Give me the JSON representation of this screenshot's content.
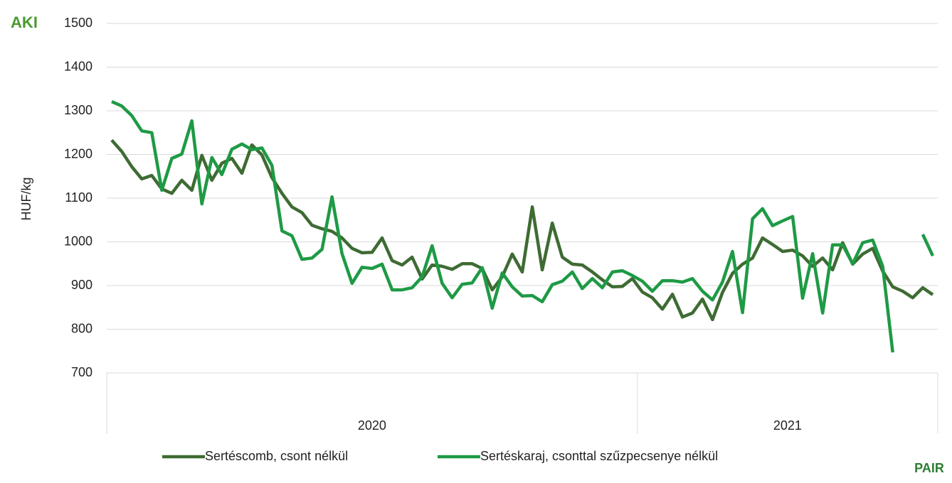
{
  "chart_data": {
    "type": "line",
    "ylabel": "HUF/kg",
    "logos": [
      "AKI",
      "PAIR"
    ],
    "categories": [
      null,
      null,
      null,
      null,
      null,
      null,
      null,
      null,
      null,
      null,
      null,
      null,
      null,
      null,
      null,
      null,
      null,
      null,
      null,
      null,
      null,
      null,
      null,
      null,
      null,
      null,
      null,
      null,
      null,
      null,
      null,
      null,
      null,
      null,
      null,
      null,
      null,
      null,
      null,
      null,
      null,
      null,
      null,
      null,
      null,
      null,
      null,
      null,
      null,
      null,
      null,
      null,
      null,
      null,
      null,
      null,
      null,
      null,
      null,
      null,
      null,
      null,
      null,
      null,
      null,
      null,
      null,
      null,
      null,
      null,
      null,
      null,
      null,
      null,
      null,
      null,
      null,
      null,
      null,
      null,
      null,
      null,
      null
    ],
    "category_groups": [
      {
        "label": "2020",
        "count": 53
      },
      {
        "label": "2021",
        "count": 30
      }
    ],
    "series": [
      {
        "name": "Sertéscomb, csont nélkül",
        "color": "#3e6b33",
        "values": [
          1233,
          1207,
          1172,
          1144,
          1152,
          1121,
          1111,
          1141,
          1118,
          1198,
          1141,
          1180,
          1191,
          1157,
          1222,
          1199,
          1147,
          1111,
          1080,
          1067,
          1038,
          1030,
          1024,
          1009,
          985,
          975,
          976,
          1009,
          957,
          947,
          965,
          915,
          947,
          944,
          937,
          950,
          950,
          939,
          890,
          920,
          972,
          931,
          1080,
          936,
          1043,
          965,
          949,
          947,
          931,
          913,
          897,
          898,
          916,
          885,
          872,
          846,
          880,
          828,
          837,
          869,
          822,
          884,
          928,
          949,
          963,
          1009,
          994,
          978,
          981,
          968,
          944,
          963,
          936,
          998,
          949,
          972,
          985,
          933,
          897,
          887,
          872,
          895,
          879
        ]
      },
      {
        "name": "Sertéskaraj, csonttal szűzpecsenye nélkül",
        "color": "#1e9a45",
        "values": [
          1321,
          1311,
          1289,
          1254,
          1250,
          1118,
          1191,
          1201,
          1277,
          1087,
          1193,
          1154,
          1212,
          1224,
          1211,
          1215,
          1175,
          1025,
          1014,
          960,
          963,
          983,
          1103,
          973,
          905,
          942,
          939,
          949,
          890,
          890,
          895,
          920,
          991,
          905,
          872,
          903,
          906,
          941,
          848,
          929,
          897,
          876,
          877,
          863,
          902,
          910,
          931,
          893,
          916,
          895,
          931,
          934,
          923,
          910,
          887,
          911,
          911,
          908,
          916,
          887,
          867,
          908,
          978,
          838,
          1053,
          1076,
          1037,
          1048,
          1058,
          871,
          973,
          837,
          993,
          993,
          950,
          998,
          1004,
          944,
          747,
          null,
          null,
          1017,
          968
        ]
      }
    ],
    "ylim": [
      700,
      1500
    ],
    "yticks": [
      700,
      800,
      900,
      1000,
      1100,
      1200,
      1300,
      1400,
      1500
    ],
    "grid": true,
    "legend": "bottom"
  }
}
